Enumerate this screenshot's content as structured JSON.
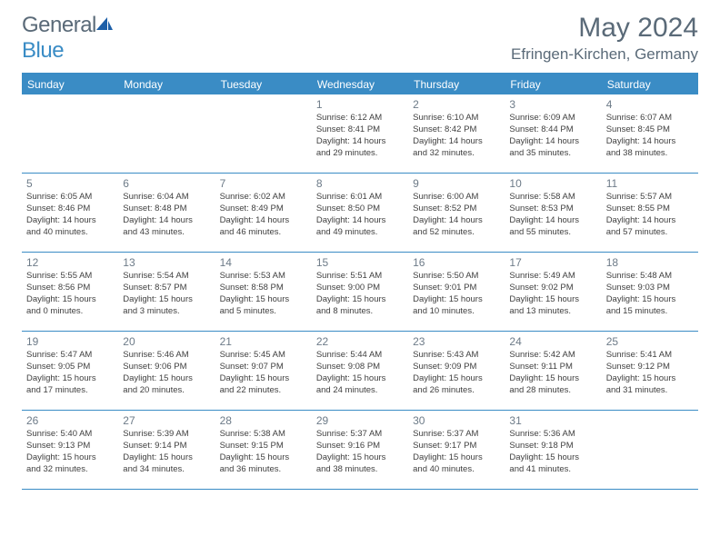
{
  "brand": {
    "part1": "General",
    "part2": "Blue"
  },
  "title": "May 2024",
  "location": "Efringen-Kirchen, Germany",
  "colors": {
    "header_bg": "#3a8cc5",
    "header_text": "#ffffff",
    "text": "#404040",
    "title_color": "#5a6a78",
    "divider": "#3a8cc5",
    "background": "#ffffff"
  },
  "typography": {
    "title_fontsize": 30,
    "location_fontsize": 17,
    "dayheader_fontsize": 12,
    "daynum_fontsize": 12,
    "cell_fontsize": 9.5
  },
  "day_headers": [
    "Sunday",
    "Monday",
    "Tuesday",
    "Wednesday",
    "Thursday",
    "Friday",
    "Saturday"
  ],
  "weeks": [
    [
      null,
      null,
      null,
      {
        "n": "1",
        "sr": "6:12 AM",
        "ss": "8:41 PM",
        "dh": "14",
        "dm": "29"
      },
      {
        "n": "2",
        "sr": "6:10 AM",
        "ss": "8:42 PM",
        "dh": "14",
        "dm": "32"
      },
      {
        "n": "3",
        "sr": "6:09 AM",
        "ss": "8:44 PM",
        "dh": "14",
        "dm": "35"
      },
      {
        "n": "4",
        "sr": "6:07 AM",
        "ss": "8:45 PM",
        "dh": "14",
        "dm": "38"
      }
    ],
    [
      {
        "n": "5",
        "sr": "6:05 AM",
        "ss": "8:46 PM",
        "dh": "14",
        "dm": "40"
      },
      {
        "n": "6",
        "sr": "6:04 AM",
        "ss": "8:48 PM",
        "dh": "14",
        "dm": "43"
      },
      {
        "n": "7",
        "sr": "6:02 AM",
        "ss": "8:49 PM",
        "dh": "14",
        "dm": "46"
      },
      {
        "n": "8",
        "sr": "6:01 AM",
        "ss": "8:50 PM",
        "dh": "14",
        "dm": "49"
      },
      {
        "n": "9",
        "sr": "6:00 AM",
        "ss": "8:52 PM",
        "dh": "14",
        "dm": "52"
      },
      {
        "n": "10",
        "sr": "5:58 AM",
        "ss": "8:53 PM",
        "dh": "14",
        "dm": "55"
      },
      {
        "n": "11",
        "sr": "5:57 AM",
        "ss": "8:55 PM",
        "dh": "14",
        "dm": "57"
      }
    ],
    [
      {
        "n": "12",
        "sr": "5:55 AM",
        "ss": "8:56 PM",
        "dh": "15",
        "dm": "0"
      },
      {
        "n": "13",
        "sr": "5:54 AM",
        "ss": "8:57 PM",
        "dh": "15",
        "dm": "3"
      },
      {
        "n": "14",
        "sr": "5:53 AM",
        "ss": "8:58 PM",
        "dh": "15",
        "dm": "5"
      },
      {
        "n": "15",
        "sr": "5:51 AM",
        "ss": "9:00 PM",
        "dh": "15",
        "dm": "8"
      },
      {
        "n": "16",
        "sr": "5:50 AM",
        "ss": "9:01 PM",
        "dh": "15",
        "dm": "10"
      },
      {
        "n": "17",
        "sr": "5:49 AM",
        "ss": "9:02 PM",
        "dh": "15",
        "dm": "13"
      },
      {
        "n": "18",
        "sr": "5:48 AM",
        "ss": "9:03 PM",
        "dh": "15",
        "dm": "15"
      }
    ],
    [
      {
        "n": "19",
        "sr": "5:47 AM",
        "ss": "9:05 PM",
        "dh": "15",
        "dm": "17"
      },
      {
        "n": "20",
        "sr": "5:46 AM",
        "ss": "9:06 PM",
        "dh": "15",
        "dm": "20"
      },
      {
        "n": "21",
        "sr": "5:45 AM",
        "ss": "9:07 PM",
        "dh": "15",
        "dm": "22"
      },
      {
        "n": "22",
        "sr": "5:44 AM",
        "ss": "9:08 PM",
        "dh": "15",
        "dm": "24"
      },
      {
        "n": "23",
        "sr": "5:43 AM",
        "ss": "9:09 PM",
        "dh": "15",
        "dm": "26"
      },
      {
        "n": "24",
        "sr": "5:42 AM",
        "ss": "9:11 PM",
        "dh": "15",
        "dm": "28"
      },
      {
        "n": "25",
        "sr": "5:41 AM",
        "ss": "9:12 PM",
        "dh": "15",
        "dm": "31"
      }
    ],
    [
      {
        "n": "26",
        "sr": "5:40 AM",
        "ss": "9:13 PM",
        "dh": "15",
        "dm": "32"
      },
      {
        "n": "27",
        "sr": "5:39 AM",
        "ss": "9:14 PM",
        "dh": "15",
        "dm": "34"
      },
      {
        "n": "28",
        "sr": "5:38 AM",
        "ss": "9:15 PM",
        "dh": "15",
        "dm": "36"
      },
      {
        "n": "29",
        "sr": "5:37 AM",
        "ss": "9:16 PM",
        "dh": "15",
        "dm": "38"
      },
      {
        "n": "30",
        "sr": "5:37 AM",
        "ss": "9:17 PM",
        "dh": "15",
        "dm": "40"
      },
      {
        "n": "31",
        "sr": "5:36 AM",
        "ss": "9:18 PM",
        "dh": "15",
        "dm": "41"
      },
      null
    ]
  ],
  "labels": {
    "sunrise_prefix": "Sunrise: ",
    "sunset_prefix": "Sunset: ",
    "daylight_prefix": "Daylight: ",
    "hours_word": " hours",
    "and_word": "and ",
    "minutes_word": " minutes."
  }
}
